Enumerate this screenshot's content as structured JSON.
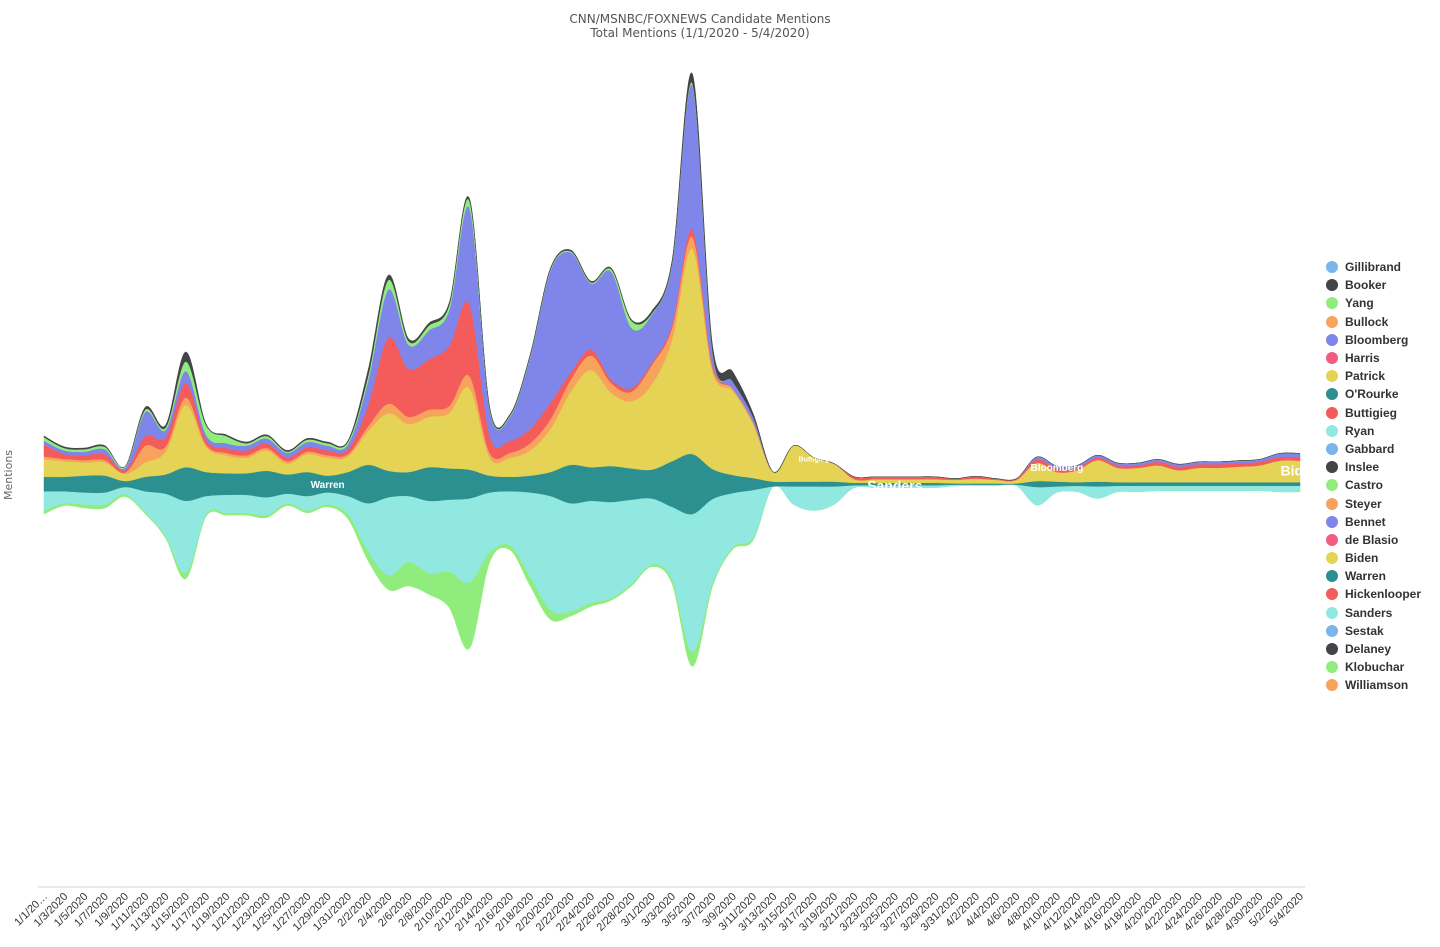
{
  "chart_data": {
    "type": "area",
    "subtype": "streamgraph",
    "title": "CNN/MSNBC/FOXNEWS Candidate Mentions",
    "subtitle": "Total Mentions (1/1/2020 - 5/4/2020)",
    "ylabel": "Mentions",
    "legend_position": "right",
    "grid": false,
    "x_tick_labels": [
      "1/1/20…",
      "1/3/2020",
      "1/5/2020",
      "1/7/2020",
      "1/9/2020",
      "1/11/2020",
      "1/13/2020",
      "1/15/2020",
      "1/17/2020",
      "1/19/2020",
      "1/21/2020",
      "1/23/2020",
      "1/25/2020",
      "1/27/2020",
      "1/29/2020",
      "1/31/2020",
      "2/2/2020",
      "2/4/2020",
      "2/6/2020",
      "2/8/2020",
      "2/10/2020",
      "2/12/2020",
      "2/14/2020",
      "2/16/2020",
      "2/18/2020",
      "2/20/2020",
      "2/22/2020",
      "2/24/2020",
      "2/26/2020",
      "2/28/2020",
      "3/1/2020",
      "3/3/2020",
      "3/5/2020",
      "3/7/2020",
      "3/9/2020",
      "3/11/2020",
      "3/13/2020",
      "3/15/2020",
      "3/17/2020",
      "3/19/2020",
      "3/21/2020",
      "3/23/2020",
      "3/25/2020",
      "3/27/2020",
      "3/29/2020",
      "3/31/2020",
      "4/2/2020",
      "4/4/2020",
      "4/6/2020",
      "4/8/2020",
      "4/10/2020",
      "4/12/2020",
      "4/14/2020",
      "4/16/2020",
      "4/18/2020",
      "4/20/2020",
      "4/22/2020",
      "4/24/2020",
      "4/26/2020",
      "4/28/2020",
      "4/30/2020",
      "5/2/2020",
      "5/4/2020"
    ],
    "series_order_bottom_to_top": [
      "Klobuchar",
      "Sanders",
      "Warren",
      "Biden",
      "Patrick",
      "Bullock",
      "Buttigieg",
      "Bloomberg",
      "Yang",
      "Booker"
    ],
    "series": [
      {
        "name": "Klobuchar",
        "color": "#90ed7d",
        "values": [
          3,
          2,
          3,
          3,
          2,
          1,
          2,
          5,
          2,
          2,
          2,
          2,
          2,
          2,
          2,
          4,
          8,
          12,
          20,
          18,
          30,
          55,
          8,
          4,
          8,
          8,
          4,
          3,
          2,
          2,
          2,
          4,
          12,
          3,
          2,
          2,
          0,
          0,
          0,
          0,
          0,
          0,
          0,
          0,
          0,
          0,
          0,
          0,
          0,
          0,
          0,
          0,
          0,
          0,
          0,
          0,
          0,
          0,
          0,
          0,
          0,
          0,
          0
        ]
      },
      {
        "name": "Sanders",
        "color": "#91e8e1",
        "values": [
          16,
          10,
          10,
          10,
          6,
          18,
          35,
          60,
          15,
          15,
          15,
          15,
          8,
          12,
          10,
          15,
          40,
          65,
          55,
          60,
          60,
          70,
          50,
          45,
          70,
          95,
          90,
          85,
          80,
          70,
          55,
          60,
          115,
          70,
          45,
          40,
          0,
          15,
          20,
          15,
          2,
          2,
          2,
          2,
          2,
          1,
          1,
          1,
          1,
          15,
          5,
          5,
          10,
          5,
          5,
          4,
          4,
          4,
          4,
          4,
          4,
          5,
          5
        ]
      },
      {
        "name": "Warren",
        "color": "#2b908f",
        "values": [
          12,
          12,
          14,
          14,
          5,
          12,
          16,
          28,
          20,
          18,
          18,
          22,
          16,
          20,
          14,
          20,
          32,
          22,
          20,
          28,
          26,
          24,
          14,
          12,
          14,
          20,
          32,
          28,
          30,
          26,
          24,
          38,
          50,
          25,
          15,
          10,
          4,
          4,
          4,
          4,
          2,
          2,
          2,
          2,
          2,
          1,
          1,
          1,
          1,
          5,
          4,
          3,
          4,
          3,
          3,
          3,
          3,
          3,
          3,
          3,
          3,
          3,
          3
        ]
      },
      {
        "name": "Biden",
        "color": "#e4d354",
        "values": [
          14,
          12,
          10,
          10,
          6,
          12,
          18,
          50,
          20,
          14,
          12,
          16,
          8,
          14,
          14,
          12,
          26,
          46,
          38,
          40,
          44,
          66,
          14,
          15,
          20,
          35,
          60,
          80,
          60,
          55,
          70,
          100,
          170,
          80,
          70,
          45,
          8,
          30,
          20,
          15,
          3,
          3,
          3,
          3,
          3,
          3,
          4,
          3,
          3,
          15,
          8,
          10,
          18,
          12,
          12,
          14,
          10,
          12,
          12,
          13,
          14,
          18,
          18
        ]
      },
      {
        "name": "Patrick",
        "color": "#e4d354",
        "values": [
          1,
          1,
          1,
          1,
          0,
          0,
          1,
          2,
          1,
          1,
          1,
          1,
          1,
          1,
          1,
          1,
          2,
          2,
          2,
          2,
          2,
          2,
          1,
          1,
          1,
          1,
          1,
          1,
          1,
          1,
          1,
          1,
          1,
          1,
          0,
          0,
          0,
          0,
          0,
          0,
          0,
          0,
          0,
          0,
          0,
          0,
          0,
          0,
          0,
          0,
          0,
          0,
          0,
          0,
          0,
          0,
          0,
          0,
          0,
          0,
          0,
          0,
          0
        ]
      },
      {
        "name": "Bullock",
        "color": "#f7a35c",
        "values": [
          2,
          2,
          2,
          2,
          1,
          14,
          4,
          6,
          2,
          2,
          2,
          2,
          2,
          2,
          2,
          2,
          4,
          8,
          6,
          6,
          6,
          10,
          4,
          4,
          6,
          8,
          10,
          12,
          8,
          8,
          16,
          10,
          10,
          4,
          2,
          2,
          0,
          0,
          0,
          0,
          0,
          0,
          0,
          0,
          0,
          0,
          0,
          0,
          0,
          0,
          0,
          0,
          0,
          0,
          0,
          0,
          0,
          0,
          0,
          0,
          0,
          0,
          0
        ]
      },
      {
        "name": "Buttigieg",
        "color": "#f45b5b",
        "values": [
          10,
          4,
          4,
          5,
          2,
          8,
          8,
          12,
          4,
          4,
          4,
          4,
          3,
          4,
          4,
          4,
          18,
          55,
          40,
          42,
          50,
          60,
          14,
          10,
          12,
          14,
          6,
          5,
          3,
          3,
          2,
          3,
          6,
          2,
          0,
          0,
          0,
          0,
          0,
          0,
          2,
          2,
          2,
          2,
          2,
          1,
          2,
          1,
          1,
          3,
          3,
          2,
          2,
          2,
          2,
          3,
          3,
          3,
          3,
          3,
          3,
          3,
          3
        ]
      },
      {
        "name": "Bloomberg",
        "color": "#8085e9",
        "values": [
          3,
          3,
          3,
          4,
          2,
          20,
          6,
          10,
          4,
          4,
          4,
          4,
          4,
          4,
          4,
          4,
          20,
          40,
          20,
          24,
          30,
          80,
          22,
          20,
          60,
          110,
          100,
          55,
          90,
          50,
          40,
          50,
          120,
          10,
          6,
          4,
          0,
          0,
          0,
          0,
          0,
          0,
          0,
          0,
          0,
          0,
          0,
          0,
          0,
          2,
          2,
          2,
          2,
          2,
          2,
          2,
          2,
          2,
          2,
          2,
          2,
          3,
          3
        ]
      },
      {
        "name": "Yang",
        "color": "#90ed7d",
        "values": [
          3,
          2,
          2,
          2,
          1,
          2,
          2,
          8,
          8,
          6,
          2,
          2,
          1,
          2,
          2,
          2,
          4,
          8,
          3,
          4,
          4,
          6,
          1,
          1,
          1,
          1,
          1,
          1,
          2,
          6,
          1,
          1,
          2,
          1,
          0,
          0,
          0,
          0,
          0,
          0,
          0,
          0,
          0,
          0,
          0,
          0,
          0,
          0,
          0,
          0,
          0,
          0,
          0,
          0,
          0,
          0,
          0,
          0,
          0,
          0,
          0,
          0,
          0
        ]
      },
      {
        "name": "Booker",
        "color": "#434348",
        "values": [
          1,
          1,
          1,
          1,
          0,
          2,
          2,
          8,
          1,
          1,
          1,
          1,
          1,
          1,
          1,
          1,
          5,
          4,
          2,
          2,
          2,
          2,
          1,
          1,
          1,
          1,
          1,
          1,
          1,
          1,
          2,
          2,
          8,
          5,
          8,
          3,
          0,
          0,
          0,
          0,
          0,
          0,
          0,
          0,
          0,
          0,
          0,
          0,
          0,
          0,
          0,
          0,
          0,
          0,
          0,
          0,
          0,
          0,
          0,
          0,
          0,
          0,
          0
        ]
      }
    ],
    "annotations": [
      {
        "text": "Warren",
        "series": "Warren",
        "x_label": "1/15/2020"
      },
      {
        "text": "Buttigieg",
        "series": "Buttigieg",
        "x_label": "2/8/2020"
      },
      {
        "text": "Bloomberg",
        "series": "Bloomberg",
        "x_label": "2/20/2020"
      },
      {
        "text": "Biden",
        "series": "Biden",
        "x_label": "3/3/2020"
      },
      {
        "text": "Sanders",
        "series": "Sanders",
        "x_label": "2/12/2020"
      }
    ],
    "legend": [
      {
        "name": "Gillibrand",
        "color": "#7cb5ec"
      },
      {
        "name": "Booker",
        "color": "#434348"
      },
      {
        "name": "Yang",
        "color": "#90ed7d"
      },
      {
        "name": "Bullock",
        "color": "#f7a35c"
      },
      {
        "name": "Bloomberg",
        "color": "#8085e9"
      },
      {
        "name": "Harris",
        "color": "#f15c80"
      },
      {
        "name": "Patrick",
        "color": "#e4d354"
      },
      {
        "name": "O'Rourke",
        "color": "#2b908f"
      },
      {
        "name": "Buttigieg",
        "color": "#f45b5b"
      },
      {
        "name": "Ryan",
        "color": "#91e8e1"
      },
      {
        "name": "Gabbard",
        "color": "#7cb5ec"
      },
      {
        "name": "Inslee",
        "color": "#434348"
      },
      {
        "name": "Castro",
        "color": "#90ed7d"
      },
      {
        "name": "Steyer",
        "color": "#f7a35c"
      },
      {
        "name": "Bennet",
        "color": "#8085e9"
      },
      {
        "name": "de Blasio",
        "color": "#f15c80"
      },
      {
        "name": "Biden",
        "color": "#e4d354"
      },
      {
        "name": "Warren",
        "color": "#2b908f"
      },
      {
        "name": "Hickenlooper",
        "color": "#f45b5b"
      },
      {
        "name": "Sanders",
        "color": "#91e8e1"
      },
      {
        "name": "Sestak",
        "color": "#7cb5ec"
      },
      {
        "name": "Delaney",
        "color": "#434348"
      },
      {
        "name": "Klobuchar",
        "color": "#90ed7d"
      },
      {
        "name": "Williamson",
        "color": "#f7a35c"
      }
    ]
  }
}
